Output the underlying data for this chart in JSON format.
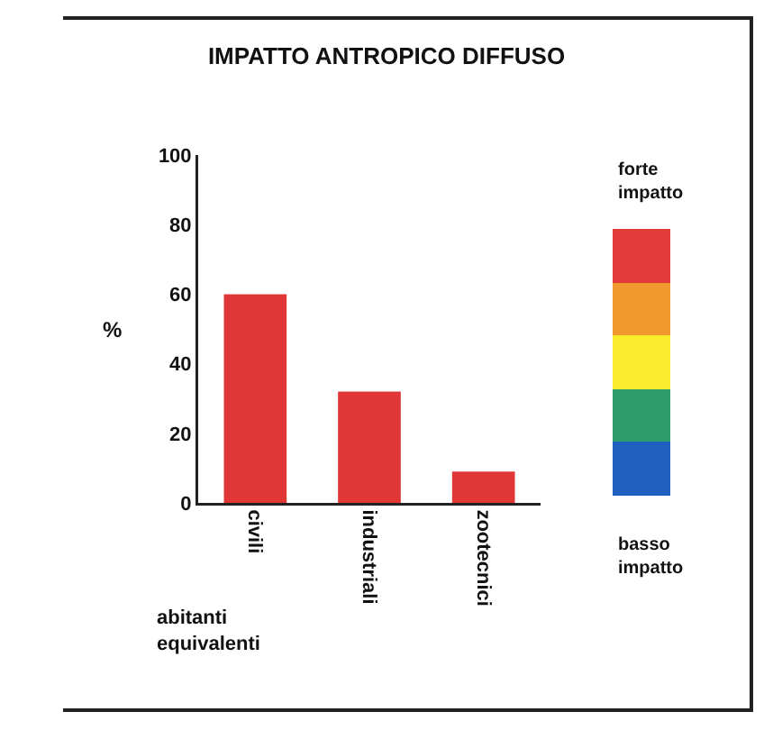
{
  "chart_data": {
    "type": "bar",
    "title": "IMPATTO ANTROPICO DIFFUSO",
    "categories": [
      "civili",
      "industriali",
      "zootecnici"
    ],
    "values": [
      60,
      32,
      9
    ],
    "color": "#e03636",
    "ylabel": "%",
    "xlabel": "abitanti equivalenti",
    "ylim": [
      0,
      100
    ],
    "yticks": [
      0,
      20,
      40,
      60,
      80,
      100
    ],
    "annotations": [
      "forte impatto",
      "basso impatto"
    ]
  }
}
